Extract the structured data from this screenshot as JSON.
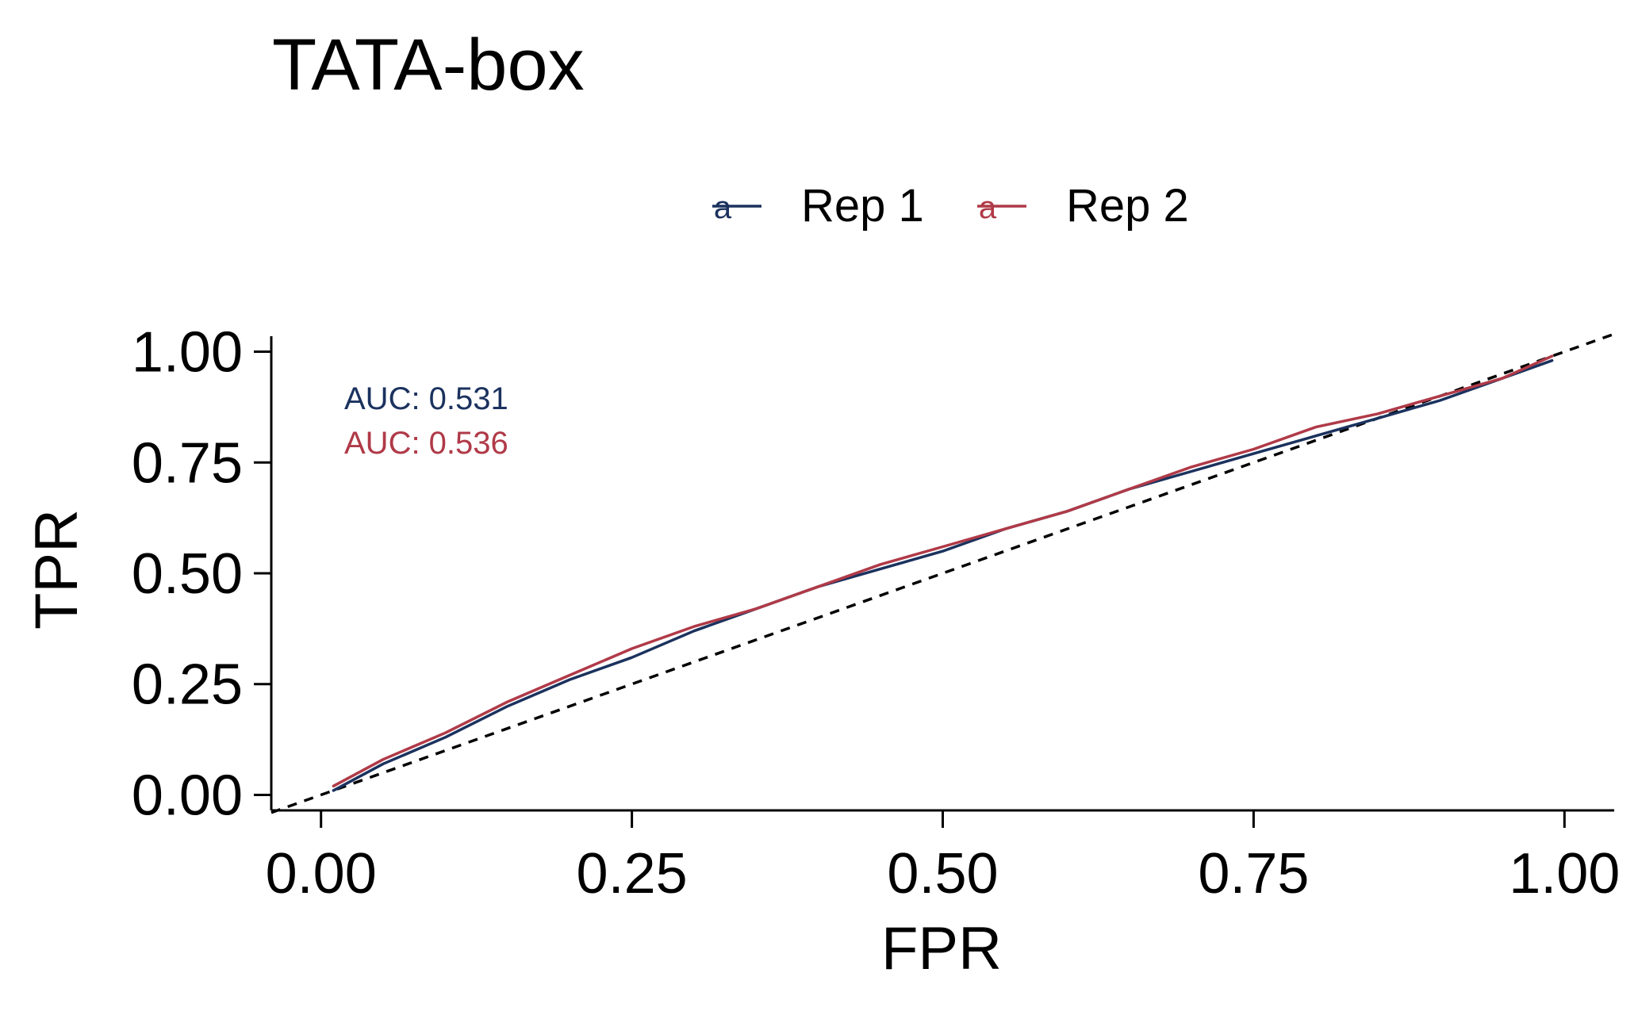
{
  "chart_data": {
    "type": "line",
    "title": "TATA-box",
    "xlabel": "FPR",
    "ylabel": "TPR",
    "xlim": [
      -0.04,
      1.04
    ],
    "ylim": [
      -0.035,
      1.035
    ],
    "x_ticks": [
      "0.00",
      "0.25",
      "0.50",
      "0.75",
      "1.00"
    ],
    "y_ticks": [
      "0.00",
      "0.25",
      "0.50",
      "0.75",
      "1.00"
    ],
    "grid": false,
    "legend_position": "top",
    "legend_glyph": "a",
    "diagonal_reference": true,
    "series": [
      {
        "name": "Rep 1",
        "color": "#1b325e",
        "auc_label": "AUC: 0.531",
        "x": [
          0.01,
          0.05,
          0.1,
          0.15,
          0.2,
          0.25,
          0.3,
          0.35,
          0.4,
          0.45,
          0.5,
          0.55,
          0.6,
          0.65,
          0.7,
          0.75,
          0.8,
          0.85,
          0.9,
          0.95,
          0.99
        ],
        "y": [
          0.01,
          0.07,
          0.13,
          0.2,
          0.26,
          0.31,
          0.37,
          0.42,
          0.47,
          0.51,
          0.55,
          0.6,
          0.64,
          0.69,
          0.73,
          0.77,
          0.81,
          0.85,
          0.89,
          0.94,
          0.98
        ]
      },
      {
        "name": "Rep 2",
        "color": "#b03a48",
        "auc_label": "AUC: 0.536",
        "x": [
          0.01,
          0.05,
          0.1,
          0.15,
          0.2,
          0.25,
          0.3,
          0.35,
          0.4,
          0.45,
          0.5,
          0.55,
          0.6,
          0.65,
          0.7,
          0.75,
          0.8,
          0.85,
          0.9,
          0.95,
          0.99
        ],
        "y": [
          0.02,
          0.08,
          0.14,
          0.21,
          0.27,
          0.33,
          0.38,
          0.42,
          0.47,
          0.52,
          0.56,
          0.6,
          0.64,
          0.69,
          0.74,
          0.78,
          0.83,
          0.86,
          0.9,
          0.94,
          0.99
        ]
      }
    ]
  }
}
